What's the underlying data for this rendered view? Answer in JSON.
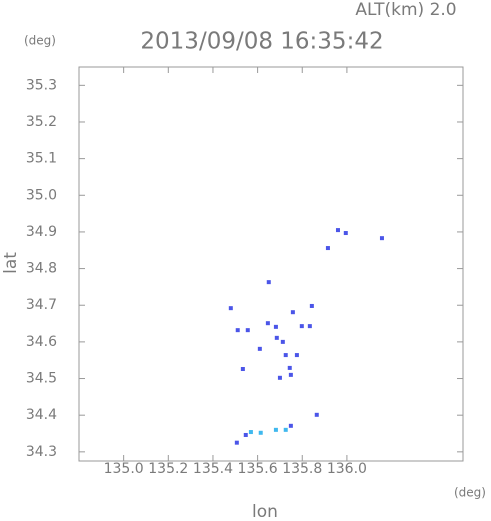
{
  "chart_data": {
    "type": "scatter",
    "header": "ALT(km) 2.0",
    "y_unit": "(deg)",
    "title": "2013/09/08 16:35:42",
    "y_label": "lat",
    "x_label": "lon",
    "x_unit": "(deg)",
    "xlim": [
      134.8,
      136.52
    ],
    "ylim": [
      34.275,
      35.35
    ],
    "xticks": [
      {
        "value": 135.0,
        "label": "135.0"
      },
      135.2,
      135.4,
      135.6,
      135.8,
      {
        "value": 136.0,
        "label": "136.0"
      }
    ],
    "yticks": [
      35.3,
      35.2,
      35.1,
      {
        "value": 35.0,
        "label": "35.0"
      },
      34.9,
      34.8,
      34.7,
      34.6,
      34.5,
      34.4,
      34.3
    ],
    "series": [
      {
        "color": "#4b55e8",
        "x": [
          135.96,
          135.995,
          136.157,
          135.915,
          135.65,
          135.843,
          135.48,
          135.511,
          135.556,
          135.646,
          135.682,
          135.758,
          135.798,
          135.834,
          135.713,
          135.726,
          135.776,
          135.744,
          135.749,
          135.7,
          135.61,
          135.534,
          135.686,
          135.865,
          135.547,
          135.507,
          135.749
        ],
        "values": [
          34.905,
          34.897,
          34.883,
          34.856,
          34.763,
          34.698,
          34.692,
          34.632,
          34.632,
          34.651,
          34.641,
          34.681,
          34.643,
          34.643,
          34.6,
          34.564,
          34.564,
          34.529,
          34.51,
          34.502,
          34.581,
          34.526,
          34.611,
          34.401,
          34.346,
          34.325,
          34.371
        ]
      },
      {
        "color": "#3fb8ee",
        "x": [
          135.57,
          135.614,
          135.682,
          135.726
        ],
        "values": [
          34.354,
          34.352,
          34.36,
          34.36
        ]
      }
    ]
  }
}
